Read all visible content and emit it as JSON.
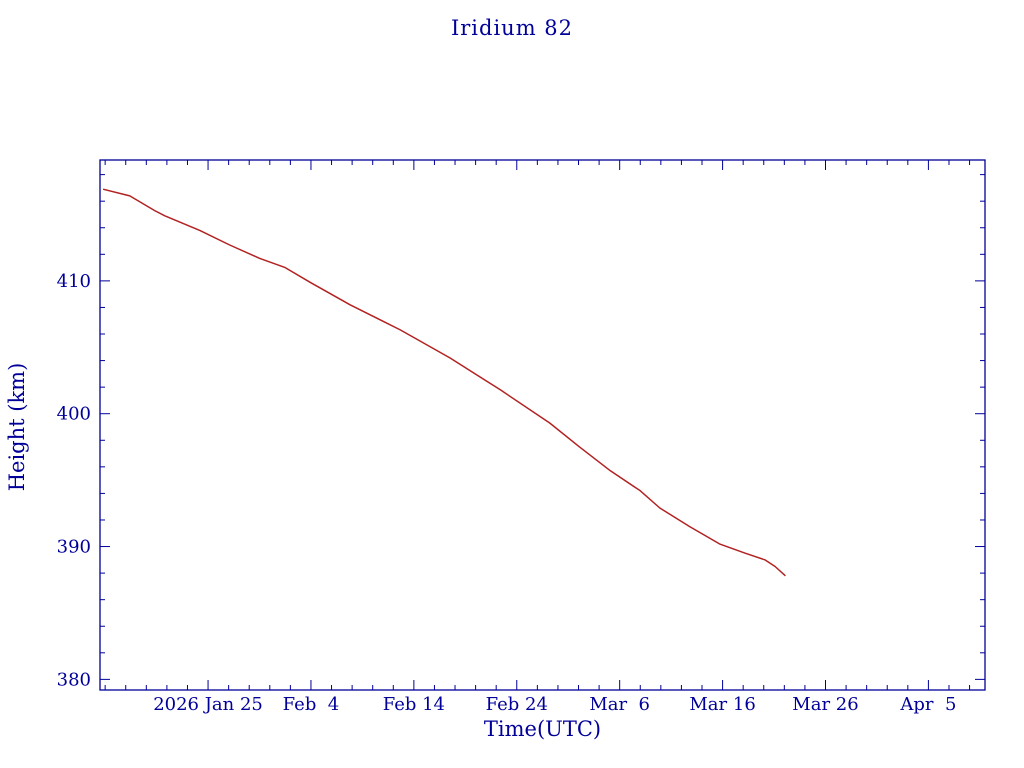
{
  "page_title": "Iridium 82",
  "colors": {
    "axis": "#000099",
    "text": "#000099",
    "line": "#b22222",
    "background": "#ffffff"
  },
  "chart_data": {
    "type": "line",
    "title": "Iridium 82",
    "xlabel": "Time(UTC)",
    "ylabel": "Height (km)",
    "legend": "none",
    "grid": false,
    "axis_color": "#000099",
    "line_color": "#b22222",
    "xlim_doy_2026": [
      14.5,
      100.5
    ],
    "ylim": [
      379.2,
      419.1
    ],
    "x_tick_labels": [
      "2026 Jan 25",
      "Feb  4",
      "Feb 14",
      "Feb 24",
      "Mar  6",
      "Mar 16",
      "Mar 26",
      "Apr  5"
    ],
    "x_tick_doy": [
      25,
      35,
      45,
      55,
      65,
      75,
      85,
      95
    ],
    "x_minor_step_days": 2,
    "y_ticks": [
      380,
      390,
      400,
      410
    ],
    "y_minor_step": 2,
    "series": [
      {
        "name": "height",
        "dates": [
          "2026-01-15",
          "2026-01-17",
          "2026-01-20",
          "2026-01-21",
          "2026-01-24",
          "2026-01-27",
          "2026-01-30",
          "2026-02-01",
          "2026-02-04",
          "2026-02-08",
          "2026-02-13",
          "2026-02-17",
          "2026-02-22",
          "2026-02-27",
          "2026-03-02",
          "2026-03-05",
          "2026-03-08",
          "2026-03-10",
          "2026-03-13",
          "2026-03-16",
          "2026-03-18",
          "2026-03-20",
          "2026-03-21",
          "2026-03-22"
        ],
        "doy": [
          14.8,
          17.4,
          19.8,
          20.8,
          24.2,
          27.1,
          30.0,
          32.5,
          34.9,
          38.8,
          43.7,
          48.5,
          53.4,
          58.2,
          61.1,
          64.1,
          67.0,
          68.9,
          71.8,
          74.7,
          77.2,
          79.1,
          80.1,
          81.1
        ],
        "values": [
          416.9,
          416.4,
          415.3,
          414.9,
          413.8,
          412.7,
          411.7,
          411.0,
          409.9,
          408.2,
          406.3,
          404.2,
          401.8,
          399.3,
          397.5,
          395.7,
          394.2,
          392.9,
          391.5,
          390.2,
          389.5,
          389.0,
          388.5,
          387.8
        ]
      }
    ]
  }
}
